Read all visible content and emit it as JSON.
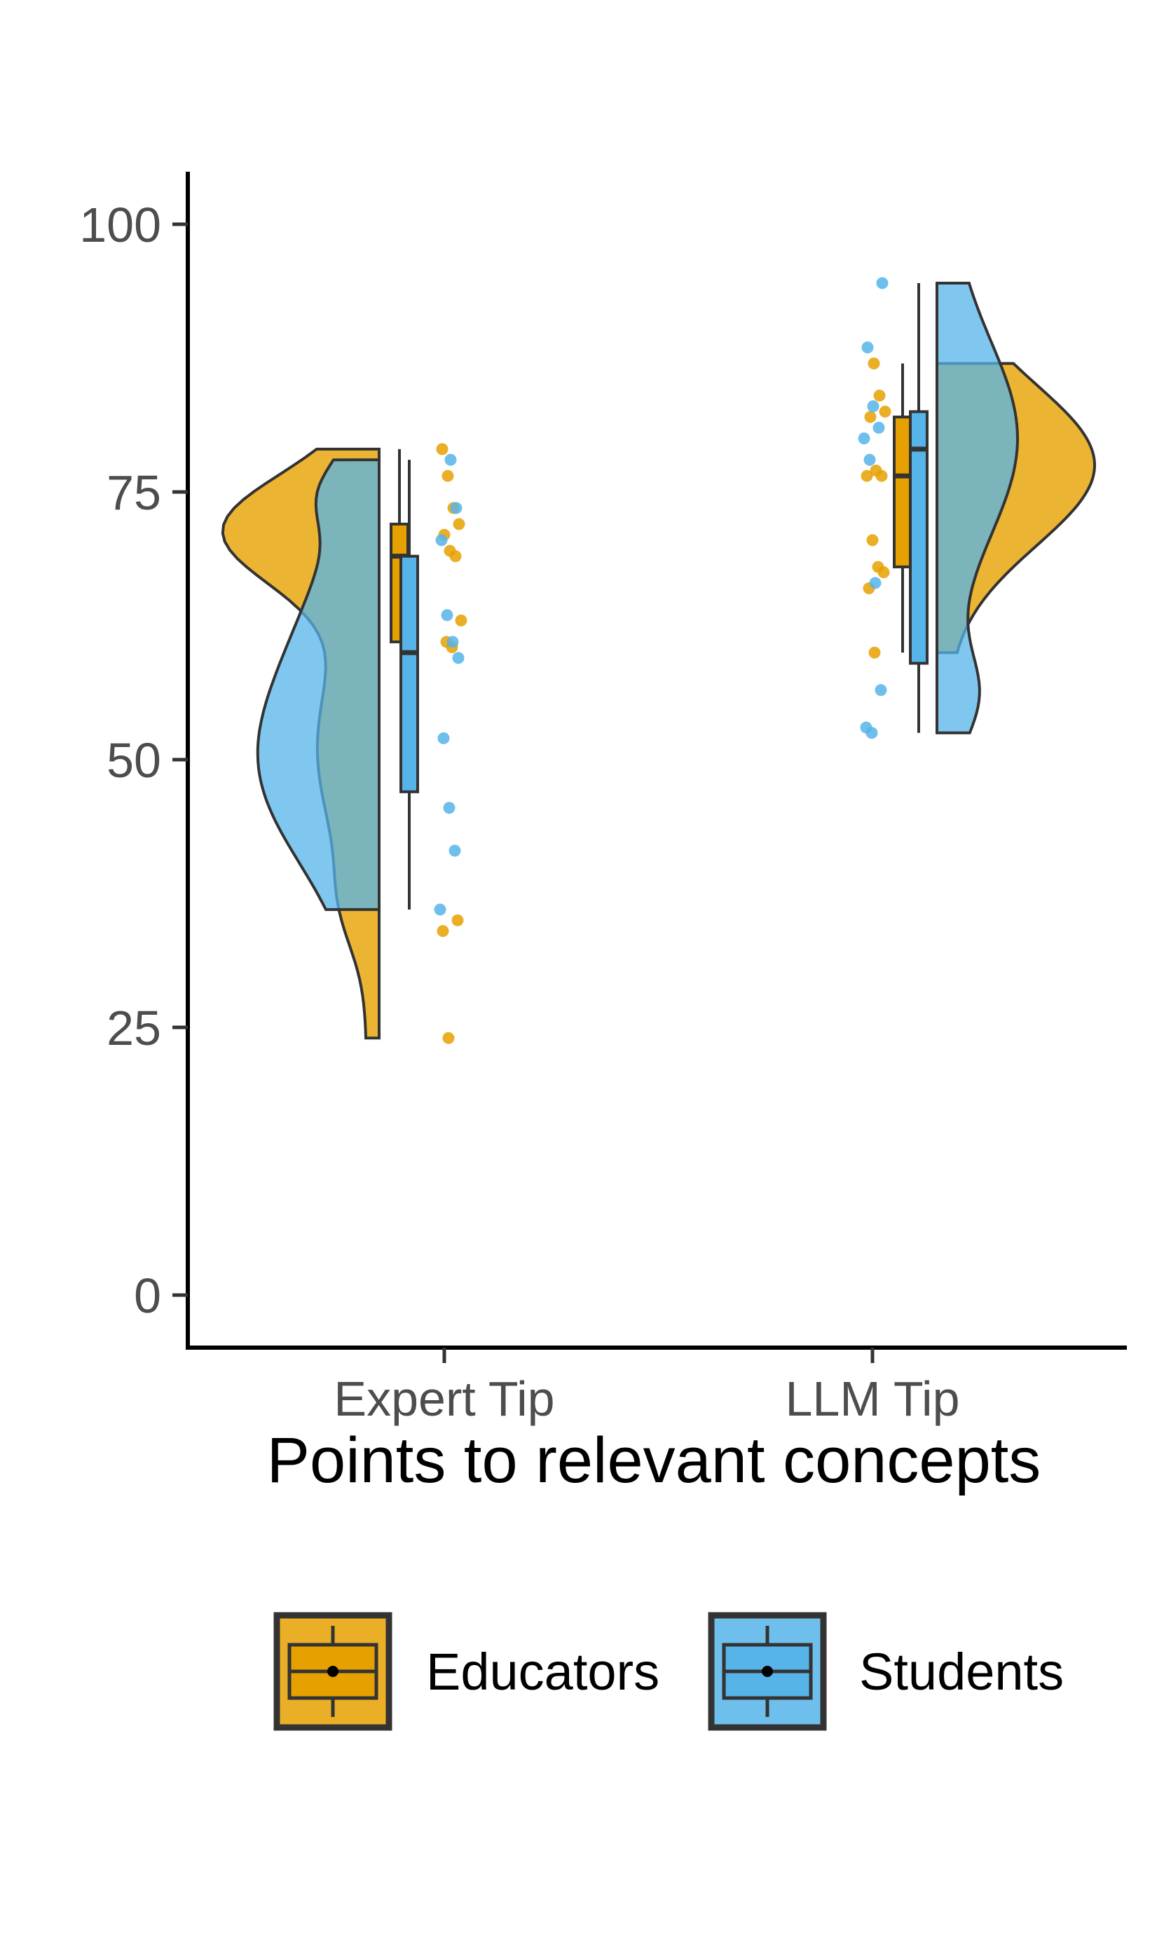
{
  "chart_data": {
    "type": "raincloud",
    "title": "",
    "xlabel": "Points to relevant concepts",
    "ylabel": "",
    "ylim": [
      -10,
      105
    ],
    "y_ticks": [
      0,
      25,
      50,
      75,
      100
    ],
    "categories": [
      "Expert Tip",
      "LLM Tip"
    ],
    "legend_position": "bottom",
    "series": [
      {
        "name": "Educators",
        "color": "#E6A100",
        "box": [
          {
            "min": 61,
            "q1": 61,
            "median": 69,
            "q3": 72,
            "max": 79
          },
          {
            "min": 60,
            "q1": 68,
            "median": 76.5,
            "q3": 82,
            "max": 87
          }
        ],
        "violin_range": [
          [
            24,
            79
          ],
          [
            60,
            87
          ]
        ],
        "points": [
          [
            79,
            76.5,
            73.5,
            72,
            71,
            69.5,
            69,
            63,
            61,
            60.5,
            35,
            34,
            24
          ],
          [
            87,
            84,
            82.5,
            82,
            77,
            76.5,
            76.5,
            70.5,
            68,
            67.5,
            66,
            60
          ]
        ]
      },
      {
        "name": "Students",
        "color": "#56B4E9",
        "box": [
          {
            "min": 36,
            "q1": 47,
            "median": 60,
            "q3": 69,
            "max": 78
          },
          {
            "min": 52.5,
            "q1": 59,
            "median": 79,
            "q3": 82.5,
            "max": 94.5
          }
        ],
        "violin_range": [
          [
            36,
            78
          ],
          [
            52.5,
            94.5
          ]
        ],
        "points": [
          [
            78,
            73.5,
            70.5,
            63.5,
            61,
            59.5,
            52,
            45.5,
            41.5,
            36
          ],
          [
            94.5,
            88.5,
            83,
            81,
            80,
            78,
            66.5,
            56.5,
            53,
            52.5
          ]
        ]
      }
    ]
  }
}
